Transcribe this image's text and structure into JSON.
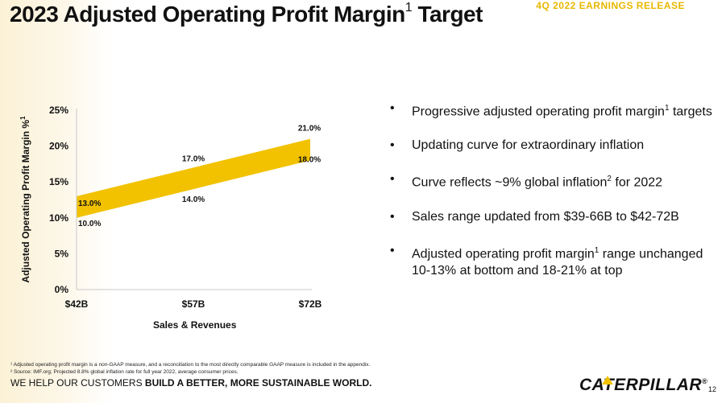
{
  "header": {
    "title": "2023 Adjusted Operating Profit Margin",
    "title_sup": "1",
    "title_end": "Target",
    "release_label": "4Q 2022 EARNINGS RELEASE"
  },
  "chart_data": {
    "type": "area",
    "xlabel": "Sales & Revenues",
    "ylabel": "Adjusted Operating Profit Margin %",
    "ylabel_sup": "1",
    "categories": [
      "$42B",
      "$57B",
      "$72B"
    ],
    "y_ticks": [
      "0%",
      "5%",
      "10%",
      "15%",
      "20%",
      "25%"
    ],
    "ylim": [
      0,
      25
    ],
    "band_color": "#f2c200",
    "series": [
      {
        "name": "bottom",
        "values": [
          10.0,
          14.0,
          18.0
        ],
        "labels": [
          "10.0%",
          "14.0%",
          "18.0%"
        ]
      },
      {
        "name": "top",
        "values": [
          13.0,
          17.0,
          21.0
        ],
        "labels": [
          "13.0%",
          "17.0%",
          "21.0%"
        ]
      }
    ]
  },
  "bullets": [
    {
      "text": "Progressive adjusted operating profit margin",
      "sup": "1",
      "after": " targets"
    },
    {
      "text": "Updating curve for extraordinary inflation",
      "sup": "",
      "after": ""
    },
    {
      "text": "Curve reflects ~9% global inflation",
      "sup": "2",
      "after": " for 2022"
    },
    {
      "text": "Sales range updated from $39-66B to $42-72B",
      "sup": "",
      "after": ""
    },
    {
      "text": "Adjusted operating profit margin",
      "sup": "1",
      "after": " range unchanged 10-13% at bottom and 18-21% at top"
    }
  ],
  "bullet_char": "•",
  "footnotes": [
    "¹ Adjusted operating profit margin is a non-GAAP measure, and a reconciliation to the most directly comparable GAAP measure is included in the appendix.",
    "² Source: IMF.org; Projected 8.8% global inflation rate for full year 2022, average consumer prices."
  ],
  "footer": {
    "tagline_regular": "WE HELP OUR CUSTOMERS ",
    "tagline_bold": "BUILD A BETTER, MORE SUSTAINABLE WORLD.",
    "logo_text": "CATERPILLAR",
    "logo_mark": "®",
    "page_number": "12"
  }
}
